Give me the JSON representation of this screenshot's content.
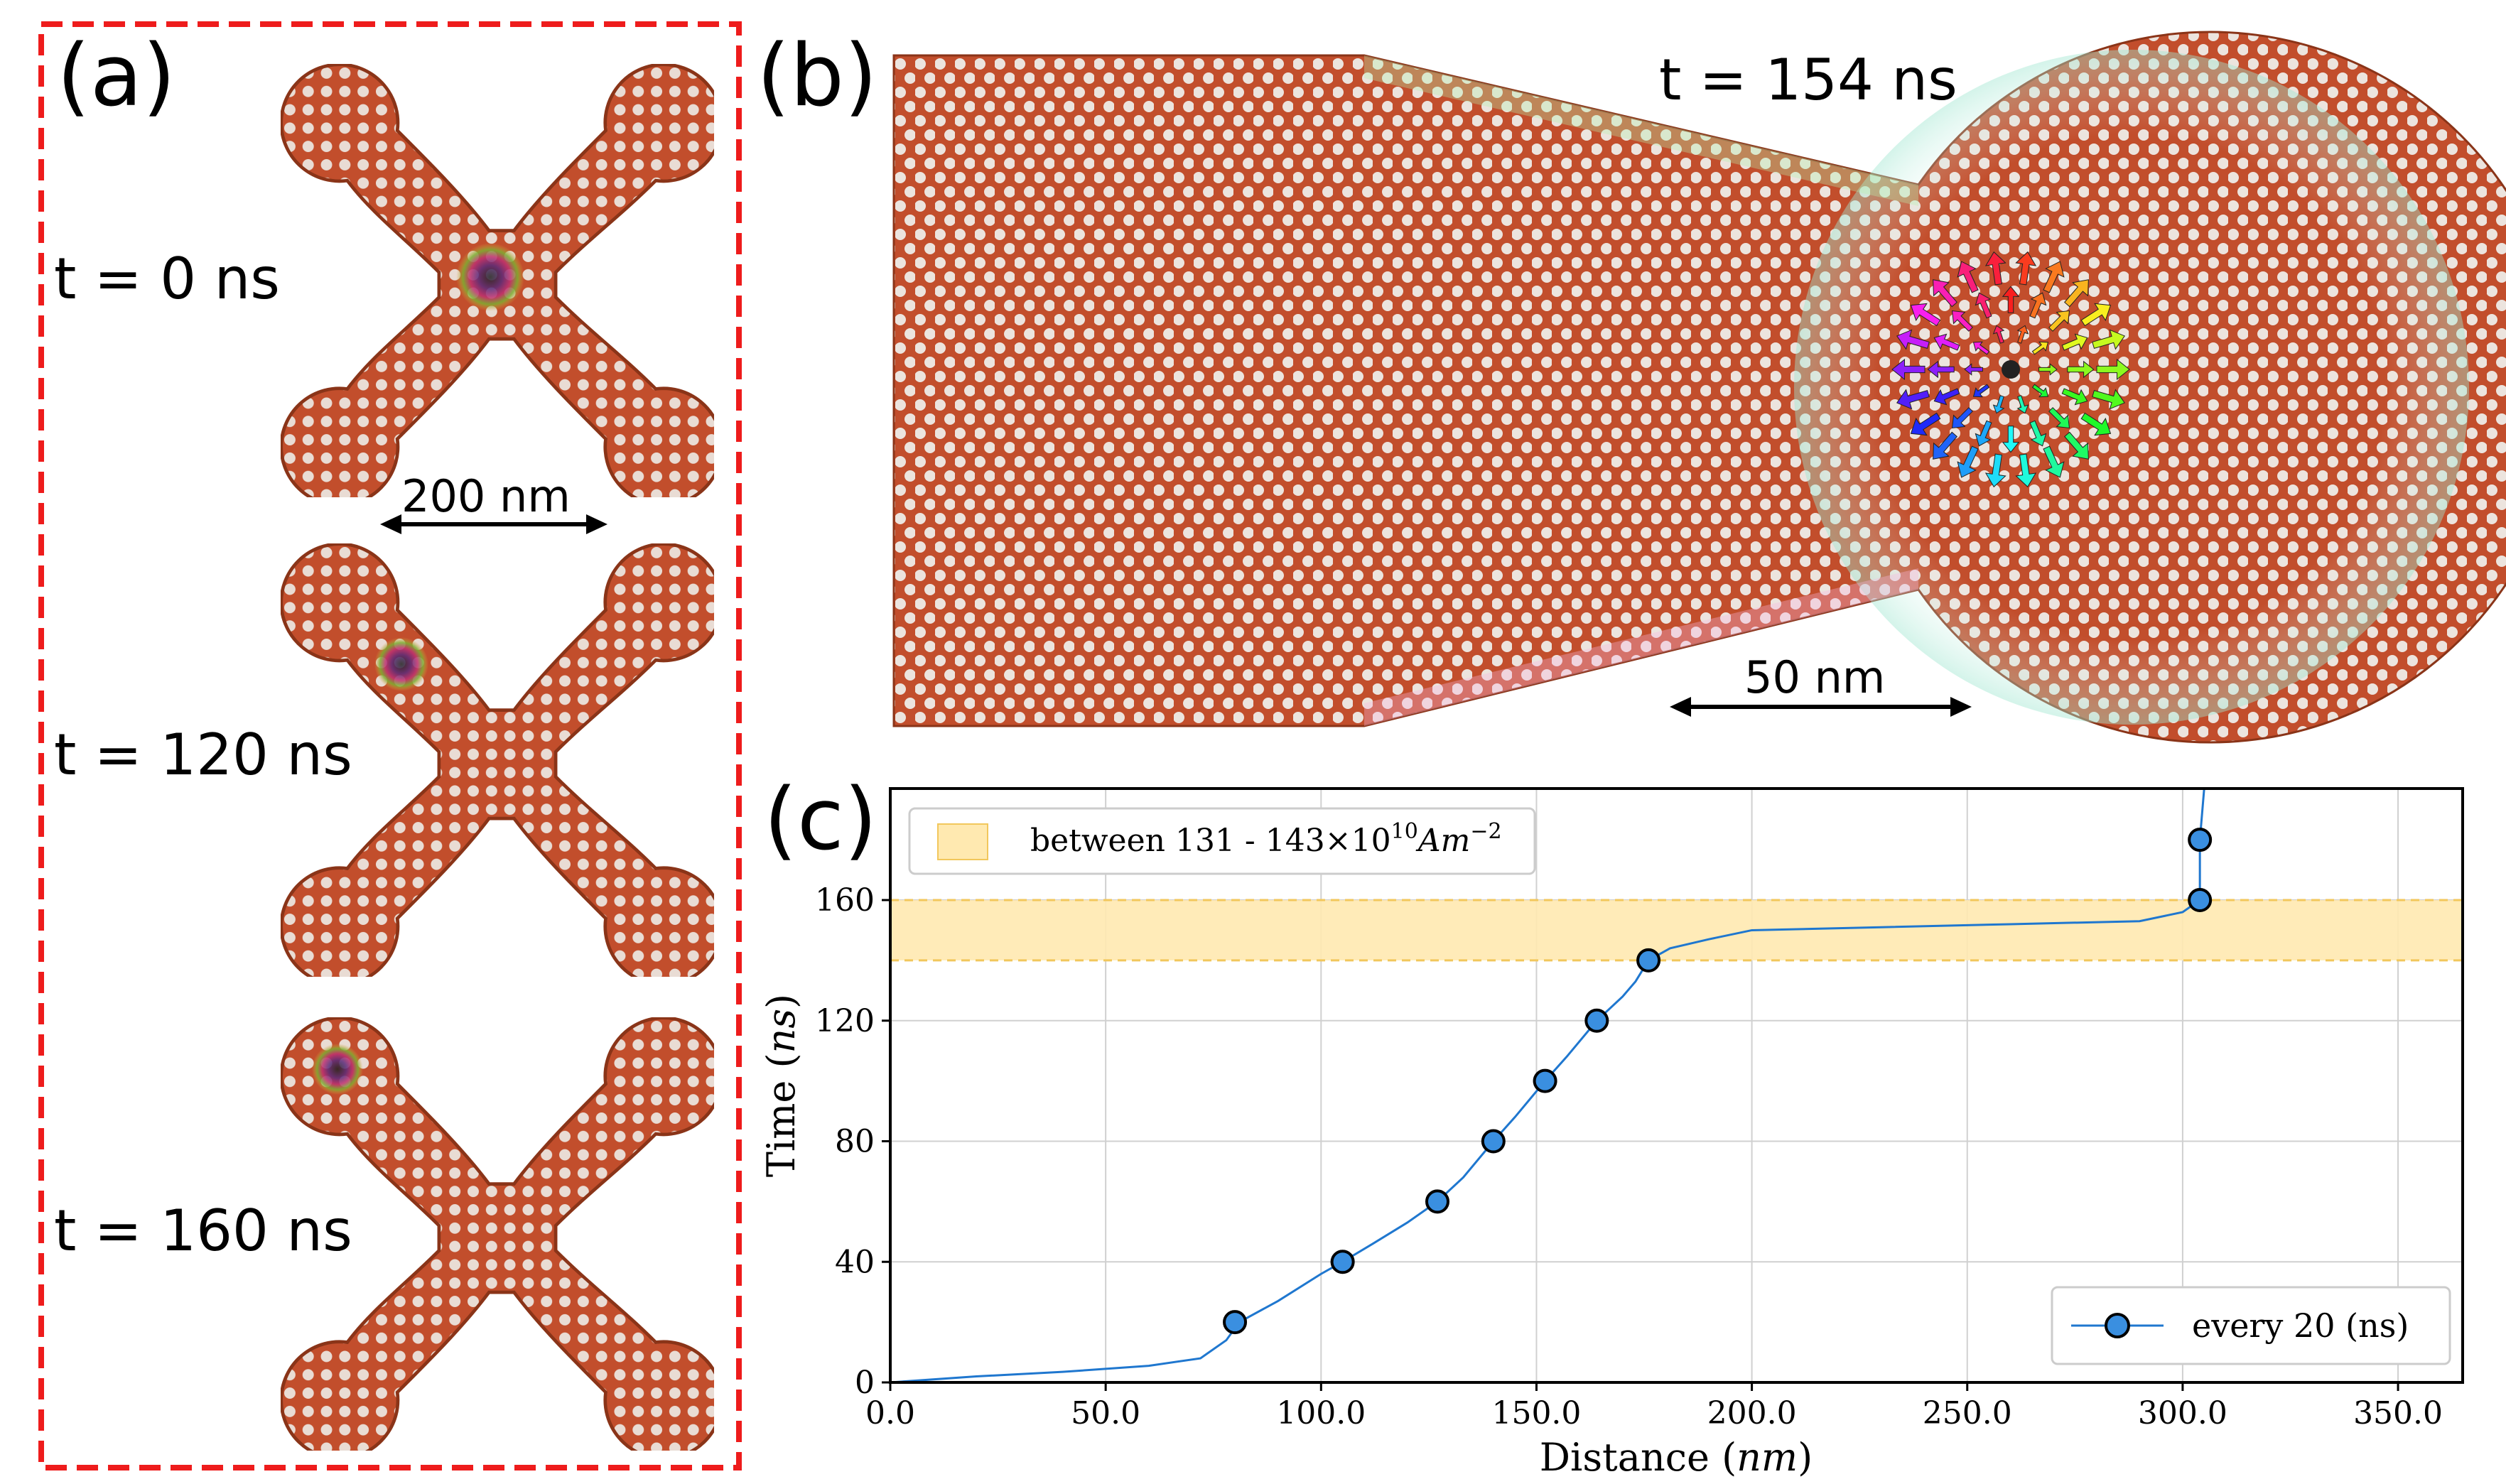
{
  "colors": {
    "copper": "#c24e2c",
    "copper_dark": "#8a3418",
    "dot": "#e9dcd4",
    "frame": "#ee1c1c",
    "band_fill": "#ffe9b0",
    "band_edge": "#f2c75c",
    "line": "#1f77cf",
    "marker_fill": "#3a8fe0",
    "grid": "#d0d0d0"
  },
  "panel_a": {
    "label": "(a)",
    "scale_bar": "200 nm",
    "frames": [
      {
        "time_label": "t = 0 ns"
      },
      {
        "time_label": "t = 120 ns"
      },
      {
        "time_label": "t = 160 ns"
      }
    ]
  },
  "panel_b": {
    "label": "(b)",
    "time_label": "t = 154 ns",
    "scale_bar": "50 nm"
  },
  "panel_c": {
    "label": "(c)",
    "band_legend": "between 131 - 143×10",
    "band_legend_exp": "10",
    "band_legend_unit": "Am",
    "band_legend_unit_exp": "−2",
    "series_legend": "every 20 (ns)"
  },
  "chart_data": {
    "type": "line",
    "title": "",
    "xlabel": "Distance (nm)",
    "ylabel": "Time (ns)",
    "xlim": [
      0,
      365
    ],
    "ylim": [
      0,
      197
    ],
    "x_ticks": [
      0,
      50,
      100,
      150,
      200,
      250,
      300,
      350
    ],
    "x_tick_labels": [
      "0.0",
      "50.0",
      "100.0",
      "150.0",
      "200.0",
      "250.0",
      "300.0",
      "350.0"
    ],
    "y_ticks": [
      0,
      40,
      80,
      120,
      160
    ],
    "y_tick_labels": [
      "0",
      "40",
      "80",
      "120",
      "160"
    ],
    "grid": true,
    "legend_position": "bottom-right",
    "shaded_band": {
      "y_range": [
        140,
        160
      ],
      "label": "between 131 - 143×10^10 Am^-2"
    },
    "series": [
      {
        "name": "every 20 (ns)",
        "line": [
          [
            0,
            0
          ],
          [
            20,
            2
          ],
          [
            40,
            3.5
          ],
          [
            60,
            5.5
          ],
          [
            72,
            8
          ],
          [
            78,
            14
          ],
          [
            81,
            20
          ],
          [
            90,
            27
          ],
          [
            100,
            36
          ],
          [
            105,
            40
          ],
          [
            112,
            46
          ],
          [
            120,
            53
          ],
          [
            127,
            60
          ],
          [
            133,
            68
          ],
          [
            140,
            80
          ],
          [
            145,
            88
          ],
          [
            152,
            100
          ],
          [
            157,
            108
          ],
          [
            164,
            120
          ],
          [
            170,
            128
          ],
          [
            173,
            133
          ],
          [
            176,
            140
          ],
          [
            181,
            144
          ],
          [
            190,
            147
          ],
          [
            200,
            150
          ],
          [
            230,
            151
          ],
          [
            260,
            152
          ],
          [
            290,
            153
          ],
          [
            300,
            156
          ],
          [
            304,
            160
          ],
          [
            304,
            180
          ],
          [
            305,
            197
          ]
        ],
        "markers": [
          [
            80,
            20
          ],
          [
            105,
            40
          ],
          [
            127,
            60
          ],
          [
            140,
            80
          ],
          [
            152,
            100
          ],
          [
            164,
            120
          ],
          [
            176,
            140
          ],
          [
            304,
            160
          ],
          [
            304,
            180
          ]
        ]
      }
    ]
  }
}
